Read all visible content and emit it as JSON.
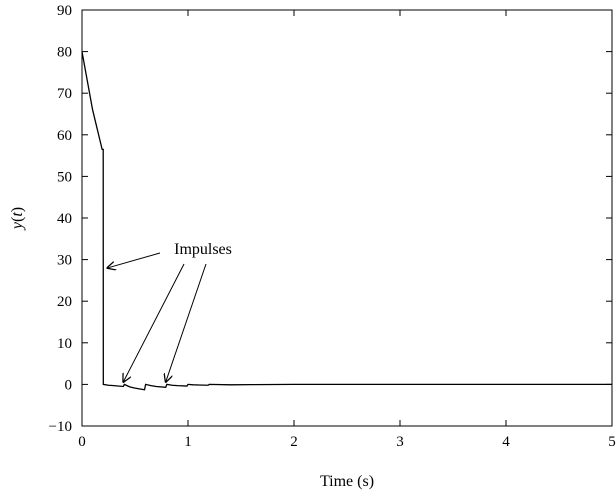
{
  "chart_data": {
    "type": "line",
    "xlabel": "Time (s)",
    "ylabel": "y(t)",
    "xlim": [
      0,
      5
    ],
    "ylim": [
      -10,
      90
    ],
    "xticks": [
      0,
      1,
      2,
      3,
      4,
      5
    ],
    "yticks": [
      -10,
      0,
      10,
      20,
      30,
      40,
      50,
      60,
      70,
      80,
      90
    ],
    "xtick_labels": [
      "0",
      "1",
      "2",
      "3",
      "4",
      "5"
    ],
    "ytick_labels": [
      "−10",
      "0",
      "10",
      "20",
      "30",
      "40",
      "50",
      "60",
      "70",
      "80",
      "90"
    ],
    "grid": false,
    "series": [
      {
        "color": "#000000",
        "x": [
          0,
          0.05,
          0.1,
          0.19,
          0.2,
          0.201,
          0.25,
          0.3,
          0.39,
          0.4,
          0.45,
          0.5,
          0.59,
          0.6,
          0.65,
          0.7,
          0.79,
          0.8,
          0.85,
          0.9,
          0.99,
          1.0,
          1.05,
          1.1,
          1.19,
          1.2,
          1.4,
          1.6,
          2.0,
          3.0,
          4.0,
          5.0
        ],
        "y": [
          80,
          73,
          66,
          56.5,
          56.5,
          0,
          -0.2,
          -0.3,
          -0.5,
          0,
          -0.6,
          -0.9,
          -1.3,
          0,
          -0.3,
          -0.5,
          -0.7,
          0,
          -0.2,
          -0.3,
          -0.4,
          0,
          -0.1,
          -0.15,
          -0.2,
          0,
          -0.1,
          -0.05,
          0,
          0,
          0,
          0
        ]
      }
    ],
    "annotations": [
      {
        "text": "Impulses",
        "arrows_to": [
          [
            0.24,
            28
          ],
          [
            0.39,
            0.6
          ],
          [
            0.79,
            0.6
          ]
        ]
      }
    ]
  }
}
